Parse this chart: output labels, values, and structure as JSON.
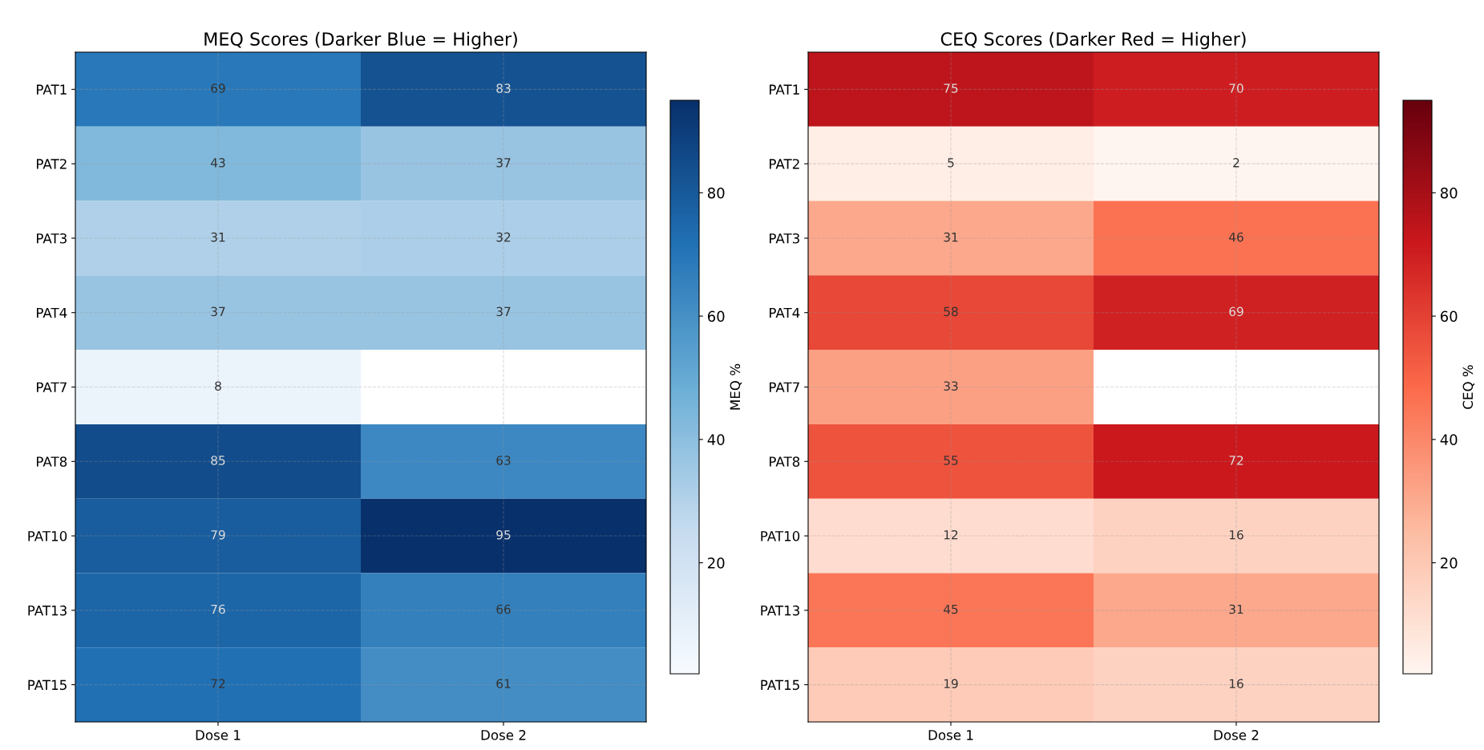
{
  "chart_data": [
    {
      "type": "heatmap",
      "title": "MEQ Scores (Darker Blue = Higher)",
      "clabel": "MEQ %",
      "categories": [
        "Dose 1",
        "Dose 2"
      ],
      "y_categories": [
        "PAT1",
        "PAT2",
        "PAT3",
        "PAT4",
        "PAT7",
        "PAT8",
        "PAT10",
        "PAT13",
        "PAT15"
      ],
      "cells": [
        [
          69,
          83
        ],
        [
          43,
          37
        ],
        [
          31,
          32
        ],
        [
          37,
          37
        ],
        [
          8,
          null
        ],
        [
          85,
          63
        ],
        [
          79,
          95
        ],
        [
          76,
          66
        ],
        [
          72,
          61
        ]
      ],
      "colors": [
        "#f7fbff",
        "#c6dbef",
        "#6baed6",
        "#2171b5",
        "#08306b"
      ],
      "clim": [
        2,
        95
      ],
      "cticks": [
        20,
        40,
        60,
        80
      ],
      "data_labels": true,
      "grid": true
    },
    {
      "type": "heatmap",
      "title": "CEQ Scores (Darker Red = Higher)",
      "clabel": "CEQ %",
      "categories": [
        "Dose 1",
        "Dose 2"
      ],
      "y_categories": [
        "PAT1",
        "PAT2",
        "PAT3",
        "PAT4",
        "PAT7",
        "PAT8",
        "PAT10",
        "PAT13",
        "PAT15"
      ],
      "cells": [
        [
          75,
          70
        ],
        [
          5,
          2
        ],
        [
          31,
          46
        ],
        [
          58,
          69
        ],
        [
          33,
          null
        ],
        [
          55,
          72
        ],
        [
          12,
          16
        ],
        [
          45,
          31
        ],
        [
          19,
          16
        ]
      ],
      "colors": [
        "#fff5f0",
        "#fcbba1",
        "#fb6a4a",
        "#cb181d",
        "#67000d"
      ],
      "clim": [
        2,
        95
      ],
      "cticks": [
        20,
        40,
        60,
        80
      ],
      "data_labels": true,
      "grid": true
    }
  ]
}
